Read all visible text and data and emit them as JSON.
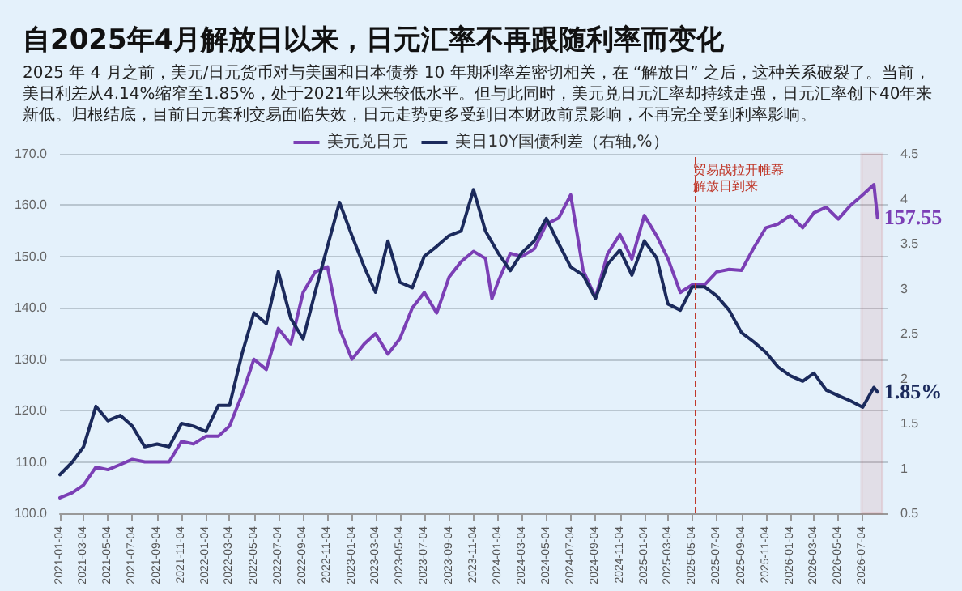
{
  "chart_data": {
    "type": "line",
    "title": "自2025年4月解放日以来，日元汇率不再跟随利率而变化",
    "subtitle": "2025 年 4 月之前，美元/日元货币对与美国和日本债券 10 年期利率差密切相关，在 “解放日” 之后，这种关系破裂了。当前，美日利差从4.14%缩窄至1.85%，处于2021年以来较低水平。但与此同时，美元兑日元汇率却持续走强，日元汇率创下40年来新低。归根结底，目前日元套利交易面临失效，日元走势更多受到日本财政前景影响，不再完全受到利率影响。",
    "series": [
      {
        "name": "美元兑日元",
        "color": "#7b3fb5",
        "x": [
          "2021-01-04",
          "2021-02-04",
          "2021-03-04",
          "2021-04-04",
          "2021-05-04",
          "2021-06-04",
          "2021-07-04",
          "2021-08-04",
          "2021-09-04",
          "2021-10-04",
          "2021-11-04",
          "2021-12-04",
          "2022-01-04",
          "2022-02-04",
          "2022-03-04",
          "2022-04-04",
          "2022-05-04",
          "2022-06-04",
          "2022-07-04",
          "2022-08-04",
          "2022-09-04",
          "2022-10-04",
          "2022-11-04",
          "2022-12-04",
          "2023-01-04",
          "2023-02-04",
          "2023-03-04",
          "2023-04-04",
          "2023-05-04",
          "2023-06-04",
          "2023-07-04",
          "2023-08-04",
          "2023-09-04",
          "2023-10-04",
          "2023-11-04",
          "2023-12-04",
          "2023-12-20",
          "2024-01-04",
          "2024-02-04",
          "2024-03-04",
          "2024-04-04",
          "2024-05-04",
          "2024-06-04",
          "2024-07-04",
          "2024-08-04",
          "2024-09-04",
          "2024-10-04",
          "2024-11-04",
          "2024-12-04",
          "2025-01-04",
          "2025-02-04",
          "2025-03-04",
          "2025-04-04",
          "2025-05-04",
          "2025-06-04",
          "2025-07-04",
          "2025-08-04",
          "2025-09-04",
          "2025-10-04",
          "2025-11-04",
          "2025-12-04",
          "2026-01-04",
          "2026-02-04",
          "2026-03-04",
          "2026-04-04",
          "2026-05-04",
          "2026-06-04",
          "2026-07-04",
          "2026-08-01",
          "2026-08-10"
        ],
        "values": [
          103,
          104,
          105.5,
          109,
          108.5,
          109.5,
          110.5,
          110,
          110,
          110,
          114,
          113.5,
          115,
          115,
          117,
          123,
          130,
          128,
          136,
          133,
          143,
          147,
          148,
          136,
          130,
          133,
          135,
          131,
          134,
          140,
          143,
          139,
          146,
          149,
          151,
          149.6,
          141.8,
          145,
          150.6,
          150,
          151.5,
          156.3,
          157.5,
          162,
          147.3,
          142,
          150.5,
          154.3,
          149.5,
          158,
          154,
          149.6,
          143,
          144.5,
          144.5,
          147,
          147.5,
          147.3,
          151.6,
          155.6,
          156.3,
          158,
          155.6,
          158.5,
          159.6,
          157.3,
          160,
          162,
          164,
          157.5
        ]
      },
      {
        "name": "美日10Y国债利差（右轴,%）",
        "color": "#1b2a5c",
        "axis": "y2",
        "x": [
          "2021-01-04",
          "2021-02-04",
          "2021-03-04",
          "2021-04-04",
          "2021-05-04",
          "2021-06-04",
          "2021-07-04",
          "2021-08-04",
          "2021-09-04",
          "2021-10-04",
          "2021-11-04",
          "2021-12-04",
          "2022-01-04",
          "2022-02-04",
          "2022-03-04",
          "2022-04-04",
          "2022-05-04",
          "2022-06-04",
          "2022-07-04",
          "2022-08-04",
          "2022-09-04",
          "2022-10-04",
          "2022-11-04",
          "2022-12-04",
          "2023-01-04",
          "2023-02-04",
          "2023-03-04",
          "2023-04-04",
          "2023-05-04",
          "2023-06-04",
          "2023-07-04",
          "2023-08-04",
          "2023-09-04",
          "2023-10-04",
          "2023-11-04",
          "2023-12-04",
          "2024-01-04",
          "2024-02-04",
          "2024-03-04",
          "2024-04-04",
          "2024-05-04",
          "2024-06-04",
          "2024-07-04",
          "2024-08-04",
          "2024-09-04",
          "2024-10-04",
          "2024-11-04",
          "2024-12-04",
          "2025-01-04",
          "2025-02-04",
          "2025-03-04",
          "2025-04-04",
          "2025-05-04",
          "2025-06-04",
          "2025-07-04",
          "2025-08-04",
          "2025-09-04",
          "2025-10-04",
          "2025-11-04",
          "2025-12-04",
          "2026-01-04",
          "2026-02-04",
          "2026-03-04",
          "2026-04-04",
          "2026-05-04",
          "2026-06-04",
          "2026-07-04",
          "2026-08-01",
          "2026-08-10"
        ],
        "values": [
          0.93,
          1.07,
          1.24,
          1.69,
          1.53,
          1.59,
          1.47,
          1.24,
          1.27,
          1.24,
          1.5,
          1.47,
          1.41,
          1.7,
          1.7,
          2.27,
          2.73,
          2.61,
          3.19,
          2.67,
          2.44,
          2.96,
          3.47,
          3.96,
          3.59,
          3.24,
          2.96,
          3.53,
          3.07,
          3.01,
          3.36,
          3.47,
          3.59,
          3.64,
          4.1,
          3.64,
          3.4,
          3.2,
          3.4,
          3.53,
          3.78,
          3.5,
          3.24,
          3.15,
          2.89,
          3.27,
          3.43,
          3.15,
          3.53,
          3.34,
          2.83,
          2.76,
          3.02,
          3.02,
          2.92,
          2.76,
          2.51,
          2.41,
          2.29,
          2.13,
          2.03,
          1.97,
          2.06,
          1.87,
          1.81,
          1.75,
          1.68,
          1.9,
          1.85
        ]
      }
    ],
    "xlim": [
      "2021-01-04",
      "2026-09-04"
    ],
    "xticks": [
      "2021-01-04",
      "2021-03-04",
      "2021-05-04",
      "2021-07-04",
      "2021-09-04",
      "2021-11-04",
      "2022-01-04",
      "2022-03-04",
      "2022-05-04",
      "2022-07-04",
      "2022-09-04",
      "2022-11-04",
      "2023-01-04",
      "2023-03-04",
      "2023-05-04",
      "2023-07-04",
      "2023-09-04",
      "2023-11-04",
      "2024-01-04",
      "2024-03-04",
      "2024-05-04",
      "2024-07-04",
      "2024-09-04",
      "2024-11-04",
      "2025-01-04",
      "2025-03-04",
      "2025-05-04",
      "2025-07-04",
      "2025-09-04",
      "2025-11-04",
      "2026-01-04",
      "2026-03-04",
      "2026-05-04",
      "2026-07-04"
    ],
    "ylim": [
      100,
      170
    ],
    "yticks": [
      {
        "value": 100,
        "label": "100.0"
      },
      {
        "value": 110,
        "label": "110.0"
      },
      {
        "value": 120,
        "label": "120.0"
      },
      {
        "value": 130,
        "label": "130.0"
      },
      {
        "value": 140,
        "label": "140.0"
      },
      {
        "value": 150,
        "label": "150.0"
      },
      {
        "value": 160,
        "label": "160.0"
      },
      {
        "value": 170,
        "label": "170.0"
      }
    ],
    "y2lim": [
      0.5,
      4.5
    ],
    "y2ticks": [
      0.5,
      1.0,
      1.5,
      2.0,
      2.5,
      3.0,
      3.5,
      4.0,
      4.5
    ],
    "ref_lines": [
      {
        "axis": "x",
        "value": "2025-05-10",
        "label": "贸易战拉开帷幕解放日到来",
        "color": "#c0392b",
        "line_style": "dashed"
      }
    ],
    "bands": [
      {
        "axis": "x",
        "from": "2026-07-01",
        "to": "2026-08-22",
        "color": "#d03a3a"
      }
    ],
    "annotations": [
      "157.55",
      "1.85%"
    ],
    "grid": "y",
    "legend": "top",
    "marker": "none",
    "line_style": "solid"
  }
}
